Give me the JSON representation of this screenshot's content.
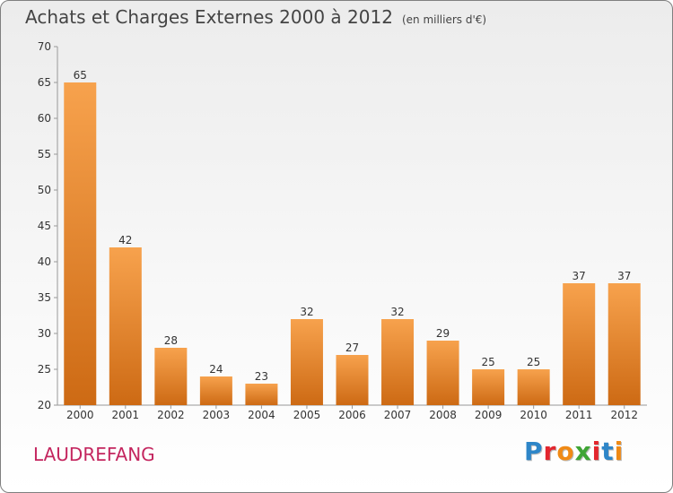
{
  "header": {
    "title": "Achats et Charges Externes 2000 à 2012",
    "subtitle": "(en milliers d'€)"
  },
  "commune": "LAUDREFANG",
  "logo": {
    "text": "Proxiti",
    "colors": [
      "#2e86c8",
      "#e3262e",
      "#f08a16",
      "#3fa535",
      "#e3262e",
      "#2e86c8",
      "#f08a16"
    ]
  },
  "chart_data": {
    "type": "bar",
    "categories": [
      "2000",
      "2001",
      "2002",
      "2003",
      "2004",
      "2005",
      "2006",
      "2007",
      "2008",
      "2009",
      "2010",
      "2011",
      "2012"
    ],
    "values": [
      65,
      42,
      28,
      24,
      23,
      32,
      27,
      32,
      29,
      25,
      25,
      37,
      37
    ],
    "data_labels": [
      "65",
      "42",
      "28",
      "24",
      "23",
      "32",
      "27",
      "32",
      "29",
      "25",
      "25",
      "37",
      "37"
    ],
    "yticks": [
      "20",
      "25",
      "30",
      "35",
      "40",
      "45",
      "50",
      "55",
      "60",
      "65",
      "70"
    ],
    "ylim": [
      20,
      70
    ],
    "grid": false,
    "bar_color_top": "#f7a24d",
    "bar_color_bottom": "#cd6a14"
  }
}
